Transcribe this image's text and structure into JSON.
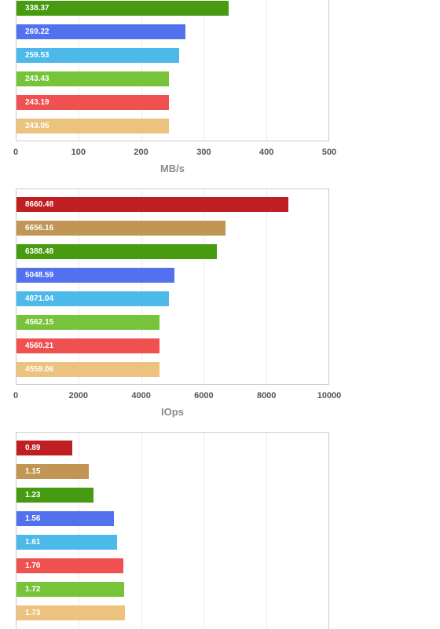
{
  "colors": [
    "#bf1f23",
    "#c19553",
    "#479b10",
    "#5271ec",
    "#4db8ea",
    "#77c43b",
    "#ef5050",
    "#ebc27e"
  ],
  "charts": [
    {
      "chart_data": {
        "type": "bar",
        "orientation": "horizontal",
        "xlabel": "MB/s",
        "xlim": [
          0,
          500
        ],
        "ticks": [
          "0",
          "100",
          "200",
          "300",
          "400",
          "500"
        ],
        "values": [
          338.37,
          269.22,
          259.53,
          243.43,
          243.19,
          243.05
        ],
        "labels": [
          "338.37",
          "269.22",
          "259.53",
          "243.43",
          "243.19",
          "243.05"
        ],
        "color_index": [
          2,
          3,
          4,
          5,
          6,
          7
        ],
        "grid": true
      }
    },
    {
      "chart_data": {
        "type": "bar",
        "orientation": "horizontal",
        "xlabel": "IOps",
        "xlim": [
          0,
          10000
        ],
        "ticks": [
          "0",
          "2000",
          "4000",
          "6000",
          "8000",
          "10000"
        ],
        "values": [
          8660.48,
          6656.16,
          6388.48,
          5048.59,
          4871.04,
          4562.15,
          4560.21,
          4559.06
        ],
        "labels": [
          "8660.48",
          "6656.16",
          "6388.48",
          "5048.59",
          "4871.04",
          "4562.15",
          "4560.21",
          "4559.06"
        ],
        "color_index": [
          0,
          1,
          2,
          3,
          4,
          5,
          6,
          7
        ],
        "grid": true
      }
    },
    {
      "chart_data": {
        "type": "bar",
        "orientation": "horizontal",
        "xlabel": "",
        "xlim": [
          0,
          5
        ],
        "ticks": [],
        "values": [
          0.89,
          1.15,
          1.23,
          1.56,
          1.61,
          1.7,
          1.72,
          1.73
        ],
        "labels": [
          "0.89",
          "1.15",
          "1.23",
          "1.56",
          "1.61",
          "1.70",
          "1.72",
          "1.73"
        ],
        "color_index": [
          0,
          1,
          2,
          3,
          4,
          6,
          5,
          7
        ],
        "grid": true
      }
    }
  ]
}
